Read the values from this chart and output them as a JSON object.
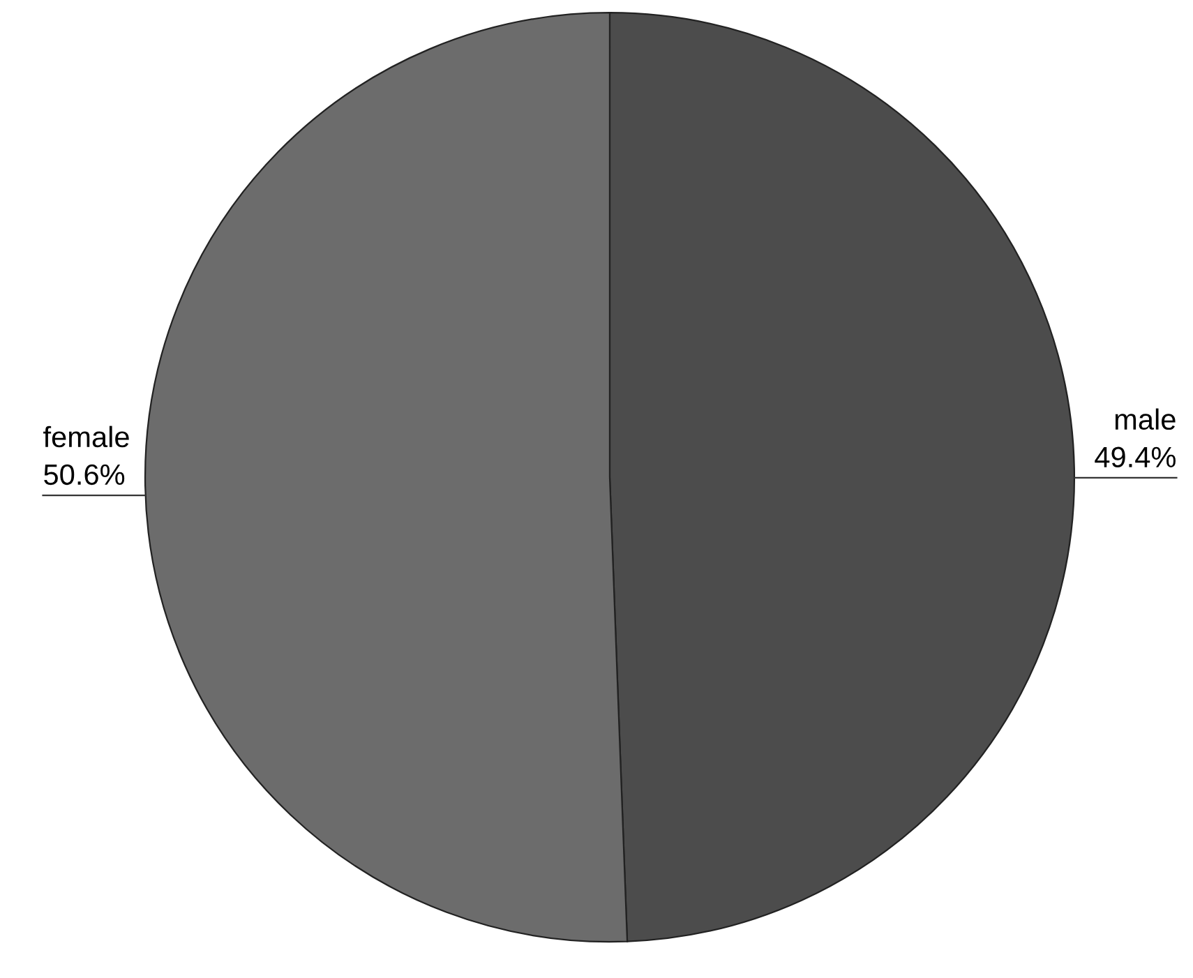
{
  "chart_data": {
    "type": "pie",
    "categories": [
      "male",
      "female"
    ],
    "values": [
      49.4,
      50.6
    ],
    "value_labels": [
      "49.4%",
      "50.6%"
    ],
    "colors": [
      "#4c4c4c",
      "#6c6c6c"
    ]
  }
}
